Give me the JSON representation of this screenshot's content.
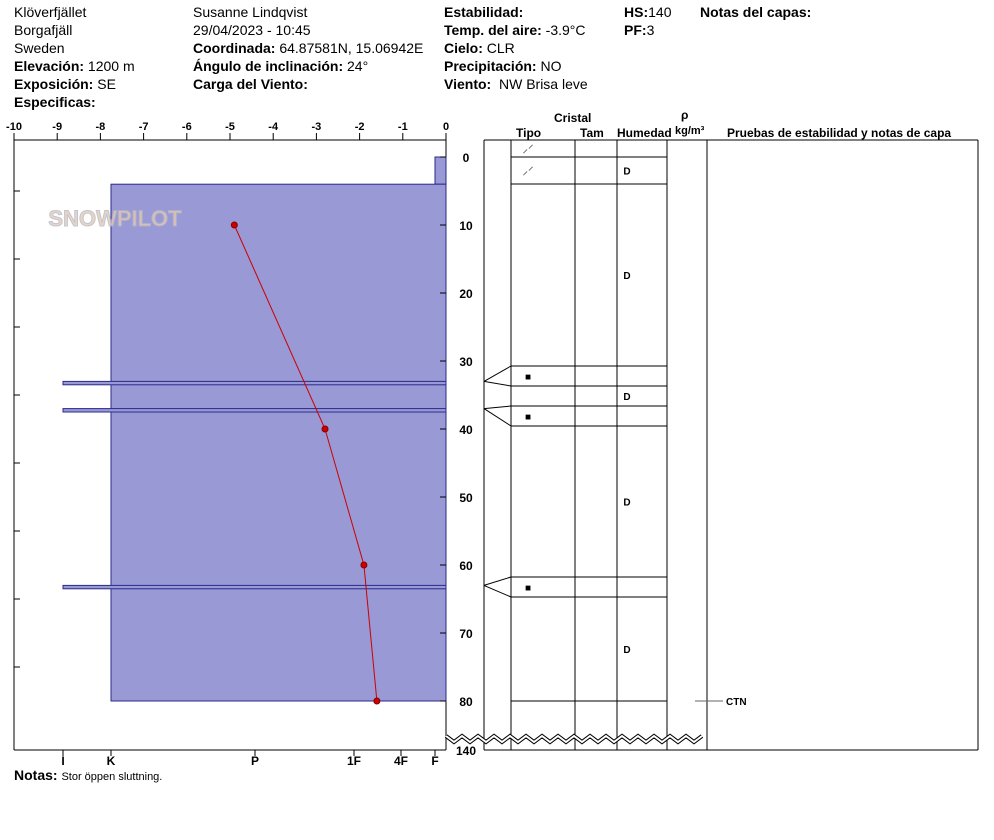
{
  "header": {
    "location": "Klöverfjället",
    "area": "Borgafjäll",
    "country": "Sweden",
    "elevation_label": "Elevación:",
    "elevation": "1200 m",
    "aspect_label": "Exposición:",
    "aspect": "SE",
    "specifics_label": "Especificas:",
    "observer": "Susanne Lindqvist",
    "datetime": "29/04/2023 - 10:45",
    "coord_label": "Coordinada:",
    "coord": "64.87581N, 15.06942E",
    "slope_label": "Ángulo de inclinación:",
    "slope": "24°",
    "windload_label": "Carga del Viento:",
    "stability_label": "Estabilidad:",
    "airtemp_label": "Temp. del aire:",
    "airtemp": "-3.9°C",
    "sky_label": "Cielo:",
    "sky": "CLR",
    "precip_label": "Precipitación:",
    "precip": "NO",
    "wind_label": "Viento:",
    "wind": "NW Brisa leve",
    "hs_label": "HS:",
    "hs": "140",
    "pf_label": "PF:",
    "pf": "3",
    "layer_notes_label": "Notas del capas:"
  },
  "table_headers": {
    "crystal": "Cristal",
    "type": "Tipo",
    "size": "Tam",
    "moisture": "Humedad",
    "rho": "ρ",
    "density_unit": "kg/m³",
    "tests": "Pruebas de estabilidad y notas de capa"
  },
  "notes_label": "Notas:",
  "notes": "Stor öppen sluttning.",
  "test_result": "CTN",
  "colors": {
    "layer_fill": "#9999d6",
    "layer_stroke": "#2a2a8a",
    "temp_line": "#cc0000"
  },
  "chart_data": {
    "type": "line",
    "x_ticks": [
      "-10",
      "-9",
      "-8",
      "-7",
      "-6",
      "-5",
      "-4",
      "-3",
      "-2",
      "-1",
      "0"
    ],
    "xlim": [
      -10,
      0
    ],
    "depth_ticks": [
      "0",
      "10",
      "20",
      "30",
      "40",
      "50",
      "60",
      "70",
      "80",
      "140"
    ],
    "hardness_ticks": [
      "I",
      "K",
      "P",
      "1F",
      "4F",
      "F"
    ],
    "temperature_profile": [
      {
        "depth": 10,
        "temp": -4.9
      },
      {
        "depth": 40,
        "temp": -2.8
      },
      {
        "depth": 60,
        "temp": -1.9
      },
      {
        "depth": 80,
        "temp": -1.6
      }
    ],
    "hardness_layers": [
      {
        "top": 0,
        "bottom": 4,
        "hardness": "F"
      },
      {
        "top": 4,
        "bottom": 80,
        "hardness": "K"
      },
      {
        "top": 33,
        "bottom": 33.5,
        "hardness": "I"
      },
      {
        "top": 37,
        "bottom": 37.5,
        "hardness": "I"
      },
      {
        "top": 63,
        "bottom": 63.5,
        "hardness": "I"
      }
    ]
  },
  "grid_rows": [
    {
      "grain": "⸝⸍",
      "moisture": ""
    },
    {
      "grain": "⸝⸍",
      "moisture": "D"
    },
    {
      "grain": "",
      "moisture": "D"
    },
    {
      "grain": "■",
      "moisture": ""
    },
    {
      "grain": "",
      "moisture": "D"
    },
    {
      "grain": "■",
      "moisture": ""
    },
    {
      "grain": "",
      "moisture": "D"
    },
    {
      "grain": "■",
      "moisture": ""
    },
    {
      "grain": "",
      "moisture": "D"
    }
  ]
}
